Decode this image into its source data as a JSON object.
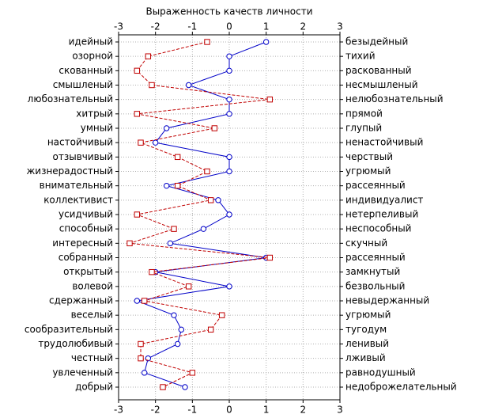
{
  "chart_data": {
    "type": "profile",
    "title": "Выраженность качеств личности",
    "categories": [
      "идейный",
      "озорной",
      "скованный",
      "смышленый",
      "любознательный",
      "хитрый",
      "умный",
      "настойчивый",
      "отзывчивый",
      "жизнерадостный",
      "внимательный",
      "коллективист",
      "усидчивый",
      "способный",
      "интересный",
      "собранный",
      "открытый",
      "волевой",
      "сдержанный",
      "веселый",
      "сообразительный",
      "трудолюбивый",
      "честный",
      "увлеченный",
      "добрый"
    ],
    "right_categories": [
      "безыдейный",
      "тихий",
      "раскованный",
      "несмышленый",
      "нелюбознательный",
      "прямой",
      "глупый",
      "ненастойчивый",
      "черствый",
      "угрюмый",
      "рассеянный",
      "индивидуалист",
      "нетерпеливый",
      "неспособный",
      "скучный",
      "рассеянный",
      "замкнутый",
      "безвольный",
      "невыдержанный",
      "угрюмый",
      "тугодум",
      "ленивый",
      "лживый",
      "равнодушный",
      "недоброжелательный"
    ],
    "series": [
      {
        "color": "#0000c8",
        "marker": "circle",
        "dashed": false,
        "values": [
          1.0,
          0,
          0,
          -1.1,
          0,
          0,
          -1.7,
          -2.0,
          0,
          0,
          -1.7,
          -0.3,
          0,
          -0.7,
          -1.6,
          1.0,
          -2.0,
          0,
          -2.5,
          -1.5,
          -1.3,
          -1.4,
          -2.2,
          -2.3,
          -1.2
        ]
      },
      {
        "color": "#c00000",
        "marker": "square",
        "dashed": true,
        "values": [
          -0.6,
          -2.2,
          -2.5,
          -2.1,
          1.1,
          -2.5,
          -0.4,
          -2.4,
          -1.4,
          -0.6,
          -1.4,
          -0.5,
          -2.5,
          -1.5,
          -2.7,
          1.1,
          -2.1,
          -1.1,
          -2.3,
          -0.2,
          -0.5,
          -2.4,
          -2.4,
          -1.0,
          -1.8
        ]
      }
    ],
    "xlim": [
      -3,
      3
    ],
    "xticks": [
      -3,
      -2,
      -1,
      0,
      1,
      2,
      3
    ],
    "grid": true
  }
}
